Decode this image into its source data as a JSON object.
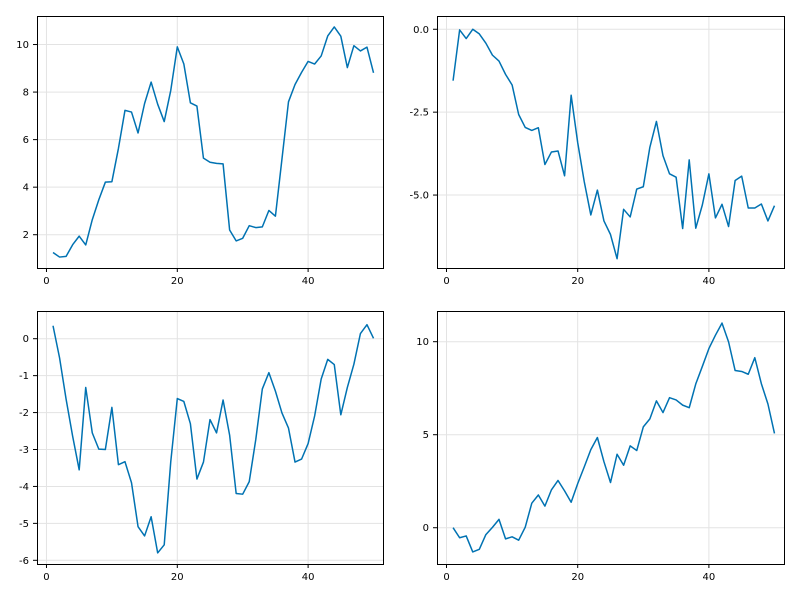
{
  "figure": {
    "background": "#ffffff"
  },
  "chart_data": [
    {
      "type": "line",
      "grid": true,
      "xlim": [
        -1.45,
        51.45
      ],
      "ylim": [
        0.6,
        11.2
      ],
      "xticks": [
        0,
        20,
        40
      ],
      "yticks": [
        2,
        4,
        6,
        8,
        10
      ],
      "series": [
        {
          "color": "#0072b2",
          "x": [
            1,
            2,
            3,
            4,
            5,
            6,
            7,
            8,
            9,
            10,
            11,
            12,
            13,
            14,
            15,
            16,
            17,
            18,
            19,
            20,
            21,
            22,
            23,
            24,
            25,
            26,
            27,
            28,
            29,
            30,
            31,
            32,
            33,
            34,
            35,
            36,
            37,
            38,
            39,
            40,
            41,
            42,
            43,
            44,
            45,
            46,
            47,
            48,
            49,
            50
          ],
          "y": [
            1.25,
            1.06,
            1.09,
            1.58,
            1.94,
            1.57,
            2.63,
            3.47,
            4.21,
            4.23,
            5.63,
            7.23,
            7.16,
            6.28,
            7.52,
            8.42,
            7.49,
            6.76,
            8.07,
            9.9,
            9.18,
            7.55,
            7.41,
            5.22,
            5.05,
            5.0,
            4.98,
            2.2,
            1.74,
            1.85,
            2.38,
            2.3,
            2.33,
            3.02,
            2.78,
            5.18,
            7.59,
            8.32,
            8.83,
            9.29,
            9.18,
            9.52,
            10.36,
            10.74,
            10.35,
            9.03,
            9.95,
            9.73,
            9.89,
            8.81
          ]
        }
      ]
    },
    {
      "type": "line",
      "grid": true,
      "xlim": [
        -1.45,
        51.45
      ],
      "ylim": [
        -7.2,
        0.4
      ],
      "xticks": [
        0,
        20,
        40
      ],
      "yticks": [
        0.0,
        -2.5,
        -5.0
      ],
      "ytick_labels": [
        "0.0",
        "-2.5",
        "-5.0"
      ],
      "series": [
        {
          "color": "#0072b2",
          "x": [
            1,
            2,
            3,
            4,
            5,
            6,
            7,
            8,
            9,
            10,
            11,
            12,
            13,
            14,
            15,
            16,
            17,
            18,
            19,
            20,
            21,
            22,
            23,
            24,
            25,
            26,
            27,
            28,
            29,
            30,
            31,
            32,
            33,
            34,
            35,
            36,
            37,
            38,
            39,
            40,
            41,
            42,
            43,
            44,
            45,
            46,
            47,
            48,
            49,
            50
          ],
          "y": [
            -1.55,
            -0.02,
            -0.28,
            0.0,
            -0.14,
            -0.42,
            -0.78,
            -0.96,
            -1.36,
            -1.68,
            -2.57,
            -2.96,
            -3.05,
            -2.97,
            -4.08,
            -3.7,
            -3.67,
            -4.42,
            -1.99,
            -3.42,
            -4.6,
            -5.6,
            -4.85,
            -5.78,
            -6.19,
            -6.92,
            -5.43,
            -5.66,
            -4.82,
            -4.75,
            -3.56,
            -2.78,
            -3.81,
            -4.36,
            -4.46,
            -6.01,
            -3.94,
            -6.0,
            -5.3,
            -4.36,
            -5.69,
            -5.28,
            -5.95,
            -4.56,
            -4.43,
            -5.39,
            -5.39,
            -5.27,
            -5.78,
            -5.32
          ]
        }
      ]
    },
    {
      "type": "line",
      "grid": true,
      "xlim": [
        -1.45,
        51.45
      ],
      "ylim": [
        -6.1,
        0.75
      ],
      "xticks": [
        0,
        20,
        40
      ],
      "yticks": [
        0,
        -1,
        -2,
        -3,
        -4,
        -5,
        -6
      ],
      "series": [
        {
          "color": "#0072b2",
          "x": [
            1,
            2,
            3,
            4,
            5,
            6,
            7,
            8,
            9,
            10,
            11,
            12,
            13,
            14,
            15,
            16,
            17,
            18,
            19,
            20,
            21,
            22,
            23,
            24,
            25,
            26,
            27,
            28,
            29,
            30,
            31,
            32,
            33,
            34,
            35,
            36,
            37,
            38,
            39,
            40,
            41,
            42,
            43,
            44,
            45,
            46,
            47,
            48,
            49,
            50
          ],
          "y": [
            0.35,
            -0.52,
            -1.64,
            -2.64,
            -3.55,
            -1.32,
            -2.55,
            -2.99,
            -3.0,
            -1.86,
            -3.41,
            -3.33,
            -3.9,
            -5.09,
            -5.34,
            -4.82,
            -5.8,
            -5.58,
            -3.33,
            -1.62,
            -1.7,
            -2.3,
            -3.8,
            -3.34,
            -2.19,
            -2.55,
            -1.66,
            -2.61,
            -4.19,
            -4.21,
            -3.87,
            -2.73,
            -1.36,
            -0.92,
            -1.42,
            -2.01,
            -2.42,
            -3.34,
            -3.26,
            -2.84,
            -2.09,
            -1.09,
            -0.56,
            -0.7,
            -2.06,
            -1.32,
            -0.69,
            0.14,
            0.38,
            0.01
          ]
        }
      ]
    },
    {
      "type": "line",
      "grid": true,
      "xlim": [
        -1.45,
        51.45
      ],
      "ylim": [
        -1.95,
        11.65
      ],
      "xticks": [
        0,
        20,
        40
      ],
      "yticks": [
        0,
        5,
        10
      ],
      "series": [
        {
          "color": "#0072b2",
          "x": [
            1,
            2,
            3,
            4,
            5,
            6,
            7,
            8,
            9,
            10,
            11,
            12,
            13,
            14,
            15,
            16,
            17,
            18,
            19,
            20,
            21,
            22,
            23,
            24,
            25,
            26,
            27,
            28,
            29,
            30,
            31,
            32,
            33,
            34,
            35,
            36,
            37,
            38,
            39,
            40,
            41,
            42,
            43,
            44,
            45,
            46,
            47,
            48,
            49,
            50
          ],
          "y": [
            0.0,
            -0.54,
            -0.44,
            -1.3,
            -1.16,
            -0.37,
            0.02,
            0.45,
            -0.6,
            -0.49,
            -0.67,
            0.03,
            1.32,
            1.76,
            1.16,
            2.04,
            2.54,
            1.98,
            1.37,
            2.37,
            3.27,
            4.2,
            4.85,
            3.55,
            2.43,
            3.95,
            3.36,
            4.4,
            4.15,
            5.42,
            5.85,
            6.82,
            6.19,
            6.99,
            6.87,
            6.59,
            6.45,
            7.73,
            8.67,
            9.63,
            10.35,
            11.0,
            9.99,
            8.45,
            8.4,
            8.25,
            9.14,
            7.74,
            6.65,
            5.07
          ]
        }
      ]
    }
  ]
}
